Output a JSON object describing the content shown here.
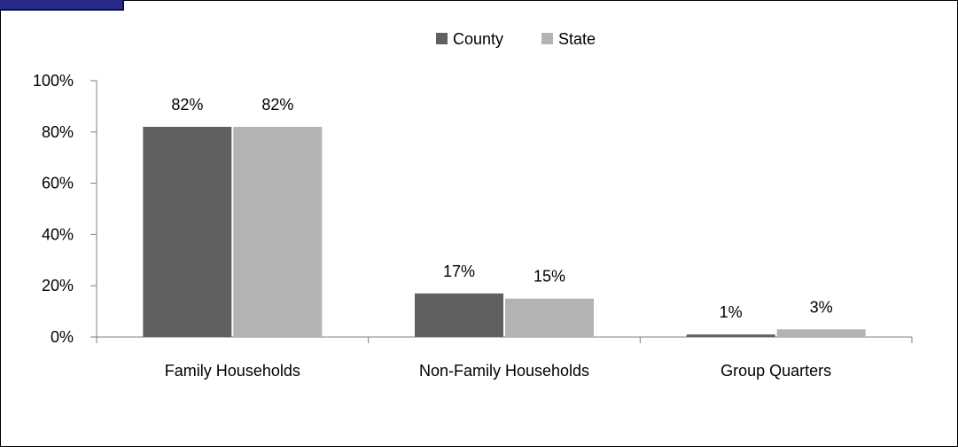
{
  "chart_data": {
    "type": "bar",
    "title": "",
    "xlabel": "",
    "ylabel": "",
    "categories": [
      "Family Households",
      "Non-Family Households",
      "Group Quarters"
    ],
    "series": [
      {
        "name": "County",
        "values": [
          82,
          17,
          1
        ],
        "labels": [
          "82%",
          "17%",
          "1%"
        ],
        "color": "#606060"
      },
      {
        "name": "State",
        "values": [
          82,
          15,
          3
        ],
        "labels": [
          "82%",
          "15%",
          "3%"
        ],
        "color": "#b3b3b3"
      }
    ],
    "ylim": [
      0,
      100
    ],
    "yticks": [
      0,
      20,
      40,
      60,
      80,
      100
    ],
    "ytick_labels": [
      "0%",
      "20%",
      "40%",
      "60%",
      "80%",
      "100%"
    ],
    "grid": false,
    "legend_position": "top"
  },
  "colors": {
    "frame_tab": "#2a2a8c"
  }
}
